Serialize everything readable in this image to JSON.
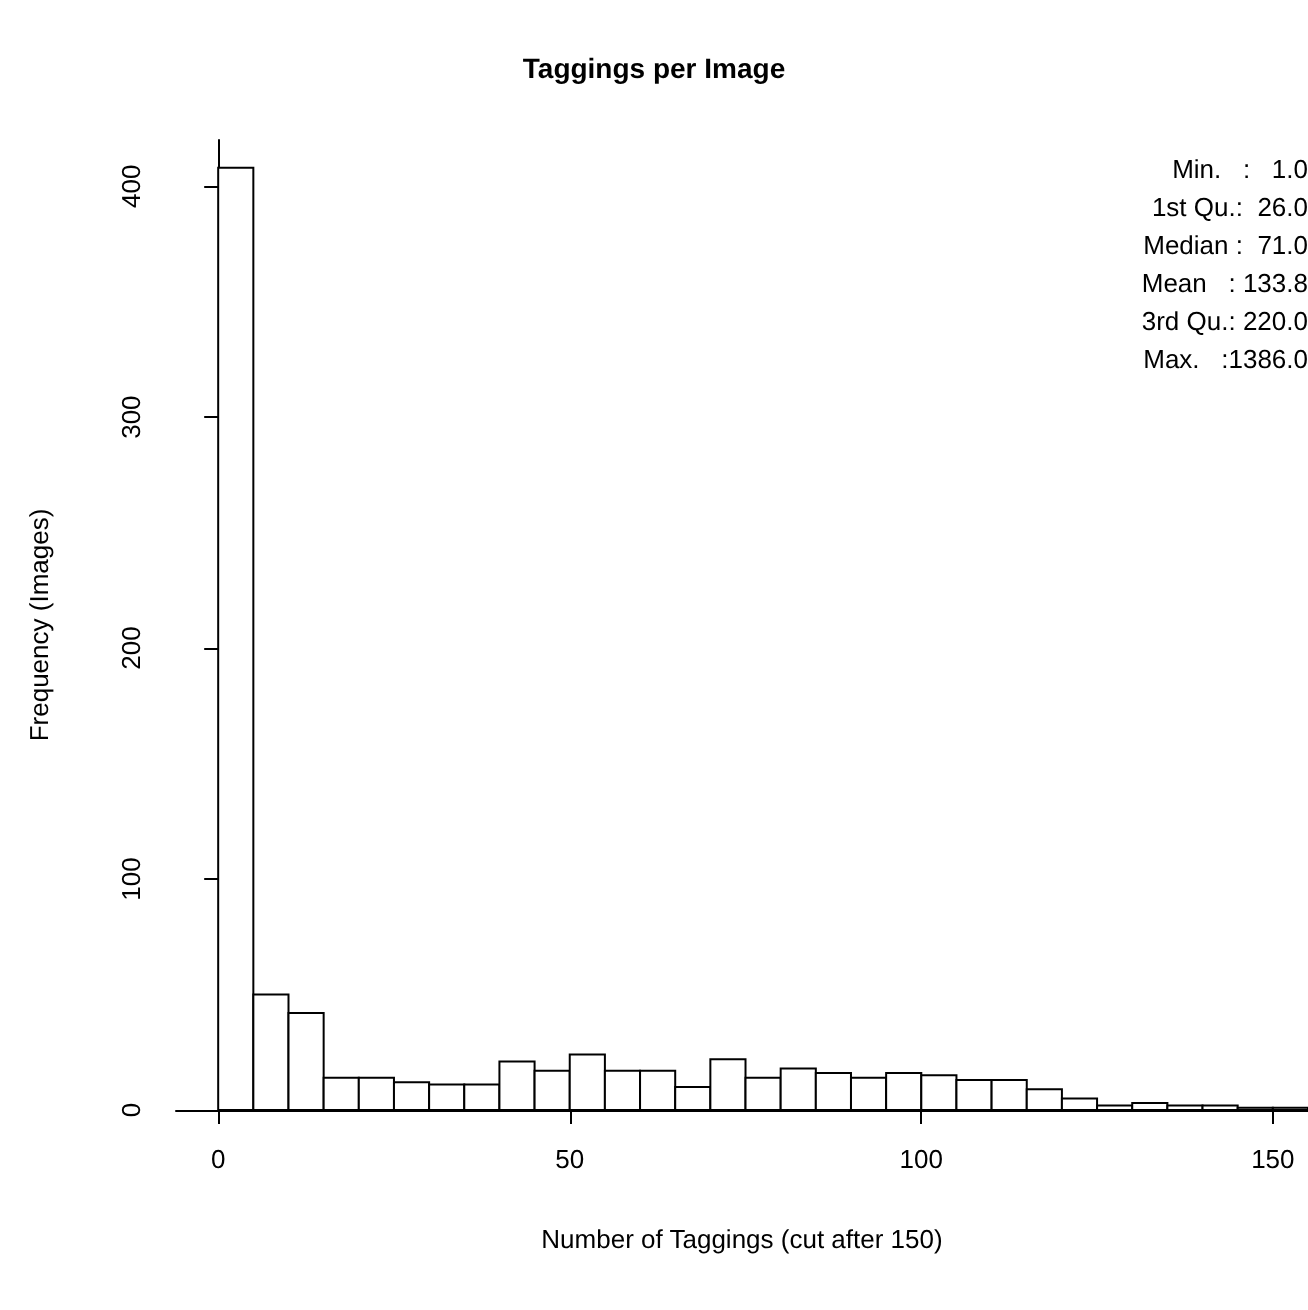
{
  "chart_data": {
    "type": "histogram",
    "title": "Taggings per Image",
    "xlabel": "Number of Taggings (cut after 150)",
    "ylabel": "Frequency (Images)",
    "bins": [
      0,
      5,
      10,
      15,
      20,
      25,
      30,
      35,
      40,
      45,
      50,
      55,
      60,
      65,
      70,
      75,
      80,
      85,
      90,
      95,
      100,
      105,
      110,
      115,
      120,
      125,
      130,
      135,
      140,
      145,
      150,
      155
    ],
    "values": [
      408,
      50,
      42,
      14,
      14,
      12,
      11,
      11,
      21,
      17,
      24,
      17,
      17,
      10,
      22,
      14,
      18,
      16,
      14,
      16,
      15,
      13,
      13,
      9,
      5,
      2,
      3,
      2,
      2,
      1,
      1
    ],
    "color": "#ffffff",
    "xlim": [
      -6,
      155
    ],
    "xticks": [
      0,
      50,
      100,
      150
    ],
    "ylim": [
      0,
      420
    ],
    "yticks": [
      0,
      100,
      200,
      300,
      400
    ],
    "annotations": [
      "Min.   :   1.0",
      "1st Qu.:  26.0",
      "Median :  71.0",
      "Mean   : 133.8",
      "3rd Qu.: 220.0",
      "Max.   :1386.0"
    ]
  }
}
